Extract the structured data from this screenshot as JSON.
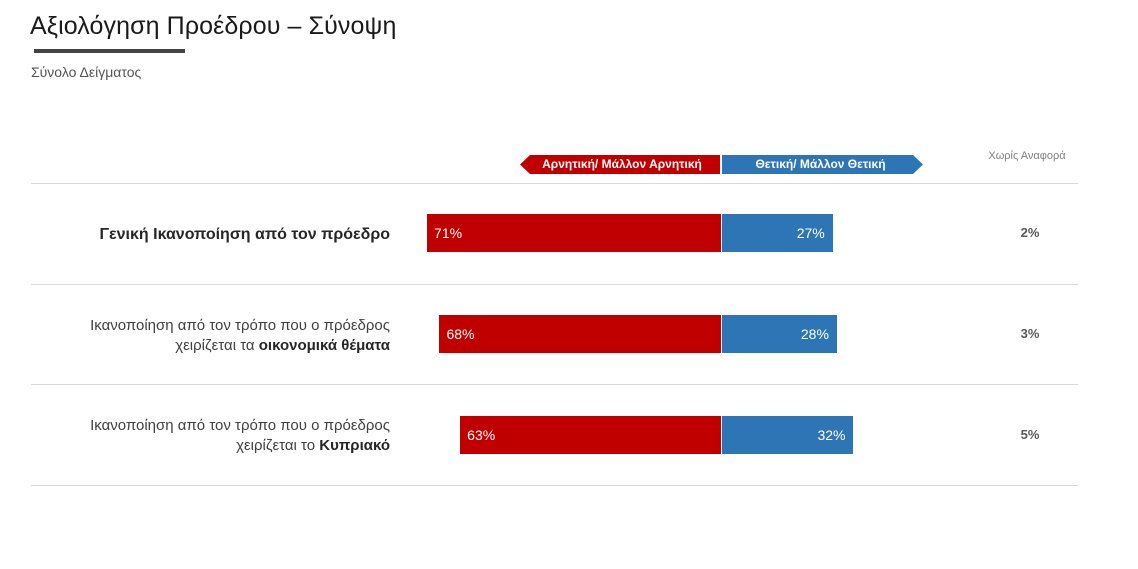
{
  "header": {
    "title": "Αξιολόγηση Προέδρου – Σύνοψη",
    "subtitle": "Σύνολο Δείγματος"
  },
  "chart_data": {
    "type": "bar",
    "orientation": "horizontal-diverging-stacked",
    "legend": {
      "negative": "Αρνητική/ Μάλλον Αρνητική",
      "positive": "Θετική/ Μάλλον Θετική",
      "no_answer": "Χωρίς Αναφορά"
    },
    "colors": {
      "negative": "#c00000",
      "positive": "#2e75b6"
    },
    "rows": [
      {
        "label_plain": "",
        "label_bold": "Γενική Ικανοποίηση από τον πρόεδρο",
        "label_line1": "",
        "negative": 71,
        "positive": 27,
        "no_answer": 2,
        "negative_label": "71%",
        "positive_label": "27%",
        "no_answer_label": "2%"
      },
      {
        "label_line1": "Ικανοποίηση από τον τρόπο που ο πρόεδρος",
        "label_plain": "χειρίζεται τα ",
        "label_bold": "οικονομικά θέματα",
        "negative": 68,
        "positive": 28,
        "no_answer": 3,
        "negative_label": "68%",
        "positive_label": "28%",
        "no_answer_label": "3%"
      },
      {
        "label_line1": "Ικανοποίηση από τον τρόπο που ο πρόεδρος",
        "label_plain": "χειρίζεται το ",
        "label_bold": "Κυπριακό",
        "negative": 63,
        "positive": 32,
        "no_answer": 5,
        "negative_label": "63%",
        "positive_label": "32%",
        "no_answer_label": "5%"
      }
    ]
  }
}
